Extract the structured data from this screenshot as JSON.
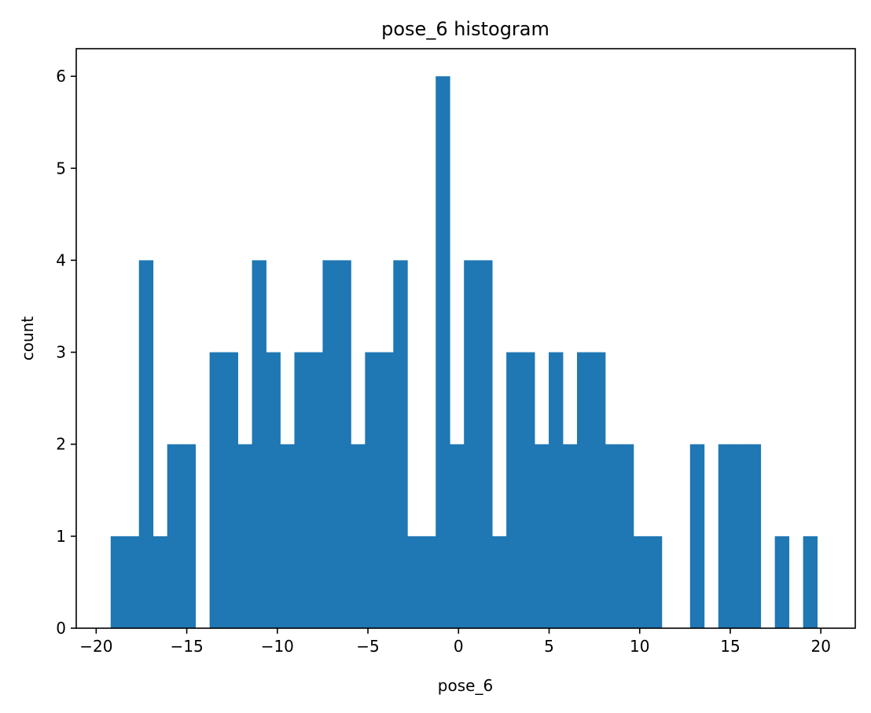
{
  "chart_data": {
    "type": "bar",
    "subtype": "histogram",
    "title": "pose_6 histogram",
    "xlabel": "pose_6",
    "ylabel": "count",
    "xlim": [
      -21.1,
      21.9
    ],
    "ylim": [
      0,
      6.3
    ],
    "xticks": [
      -20,
      -15,
      -10,
      -5,
      0,
      5,
      10,
      15,
      20
    ],
    "xtick_labels": [
      "−20",
      "−15",
      "−10",
      "−5",
      "0",
      "5",
      "10",
      "15",
      "20"
    ],
    "yticks": [
      0,
      1,
      2,
      3,
      4,
      5,
      6
    ],
    "ytick_labels": [
      "0",
      "1",
      "2",
      "3",
      "4",
      "5",
      "6"
    ],
    "bin_start": -19.2,
    "bin_width": 0.78,
    "values": [
      1,
      1,
      4,
      1,
      2,
      2,
      0,
      3,
      3,
      2,
      4,
      3,
      2,
      3,
      3,
      4,
      4,
      2,
      3,
      3,
      4,
      1,
      1,
      6,
      2,
      4,
      4,
      1,
      3,
      3,
      2,
      3,
      2,
      3,
      3,
      2,
      2,
      1,
      1,
      0,
      0,
      2,
      0,
      2,
      2,
      2,
      0,
      1,
      0,
      1
    ],
    "bar_color": "#1f77b4",
    "grid": false,
    "legend": "none"
  }
}
